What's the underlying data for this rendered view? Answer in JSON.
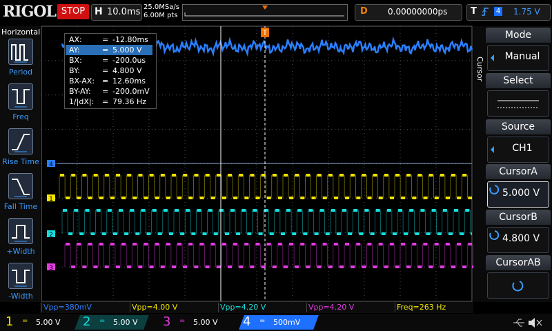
{
  "header": {
    "brand": "RIGOL",
    "status": "STOP",
    "timebase_label": "H",
    "timebase": "10.0ms",
    "sample_rate": "25.0MSa/s",
    "memory_depth": "6.00M pts",
    "delay_label": "D",
    "delay": "0.00000000ps",
    "trigger_label": "T",
    "trigger_source": "4",
    "trigger_level": "1.75 V"
  },
  "left_panel": {
    "title": "Horizontal",
    "items": [
      "Period",
      "Freq",
      "Rise Time",
      "Fall Time",
      "+Width",
      "-Width"
    ]
  },
  "cursor_readout": {
    "rows": [
      [
        "AX:",
        "=",
        "-12.80ms"
      ],
      [
        "AY:",
        "=",
        "5.000 V"
      ],
      [
        "BX:",
        "=",
        "-200.0us"
      ],
      [
        "BY:",
        "=",
        "4.800 V"
      ],
      [
        "BX-AX:",
        "=",
        "12.60ms"
      ],
      [
        "BY-AY:",
        "=",
        "-200.0mV"
      ],
      [
        "1/|dX|:",
        "=",
        "79.36 Hz"
      ]
    ]
  },
  "markers": {
    "trigger": "T",
    "channels": [
      "4",
      "1",
      "2",
      "3"
    ]
  },
  "right_menu": {
    "side_label": "Cursor",
    "items": [
      {
        "title": "Mode",
        "value": "Manual"
      },
      {
        "title": "Select"
      },
      {
        "title": "Source",
        "value": "CH1"
      },
      {
        "title": "CursorA",
        "value": "5.000 V"
      },
      {
        "title": "CursorB",
        "value": "4.800 V"
      },
      {
        "title": "CursorAB"
      }
    ]
  },
  "measurements": [
    "Vpp=380mV",
    "Vpp=4.00 V",
    "Vpp=4.20 V",
    "Vpp=4.20 V",
    "Freq=263 Hz"
  ],
  "channels": [
    {
      "number": "1",
      "coupling": "=",
      "scale": "5.00 V"
    },
    {
      "number": "2",
      "coupling": "=",
      "scale": "5.00 V"
    },
    {
      "number": "3",
      "coupling": "=",
      "scale": "5.00 V"
    },
    {
      "number": "4",
      "coupling": "=",
      "scale": "500mV"
    }
  ]
}
